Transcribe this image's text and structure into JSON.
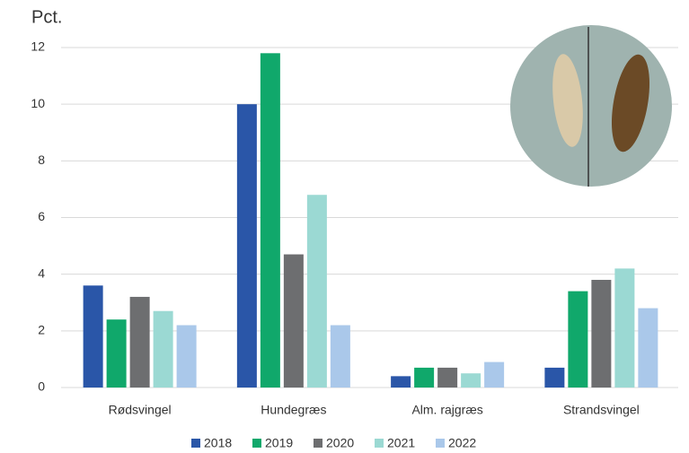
{
  "chart_data": {
    "type": "bar",
    "y_label": "Pct.",
    "categories": [
      "Rødsvingel",
      "Hundegræs",
      "Alm. rajgræs",
      "Strandsvingel"
    ],
    "series": [
      {
        "name": "2018",
        "color": "#2a56a8",
        "values": [
          3.6,
          10,
          0.4,
          0.7
        ]
      },
      {
        "name": "2019",
        "color": "#10a86b",
        "values": [
          2.4,
          11.8,
          0.7,
          3.4
        ]
      },
      {
        "name": "2020",
        "color": "#6d6e70",
        "values": [
          3.2,
          4.7,
          0.7,
          3.8
        ]
      },
      {
        "name": "2021",
        "color": "#9bd9d3",
        "values": [
          2.7,
          6.8,
          0.5,
          4.2
        ]
      },
      {
        "name": "2022",
        "color": "#aac8ea",
        "values": [
          2.2,
          2.2,
          0.9,
          2.8
        ]
      }
    ],
    "ylim": [
      0,
      12
    ],
    "yticks": [
      0,
      2,
      4,
      6,
      8,
      10,
      12
    ],
    "grid": true
  }
}
